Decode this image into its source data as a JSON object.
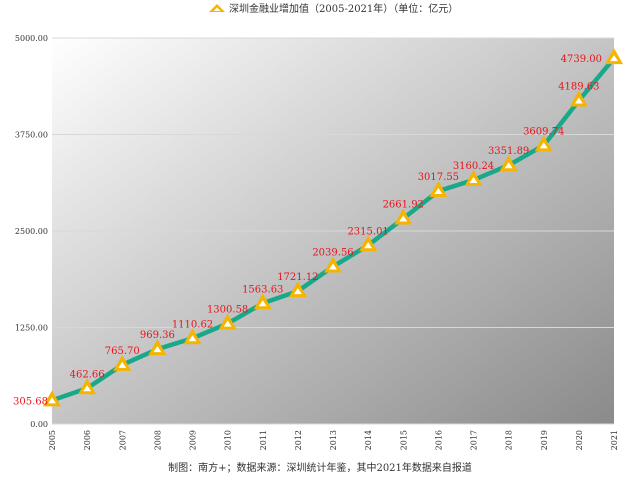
{
  "chart_data": {
    "type": "line",
    "title": "深圳金融业增加值（2005-2021年）（单位：亿元）",
    "xlabel": "",
    "ylabel": "",
    "categories": [
      "2005",
      "2006",
      "2007",
      "2008",
      "2009",
      "2010",
      "2011",
      "2012",
      "2013",
      "2014",
      "2015",
      "2016",
      "2017",
      "2018",
      "2019",
      "2020",
      "2021"
    ],
    "series": [
      {
        "name": "深圳金融业增加值（2005-2021年）（单位：亿元）",
        "values": [
          305.68,
          462.66,
          765.7,
          969.36,
          1110.62,
          1300.58,
          1563.63,
          1721.12,
          2039.56,
          2315.01,
          2661.92,
          3017.55,
          3160.24,
          3351.89,
          3609.74,
          4189.63,
          4739.0
        ],
        "labels": [
          "305.68",
          "462.66",
          "765.70",
          "969.36",
          "1110.62",
          "1300.58",
          "1563.63",
          "1721.12",
          "2039.56",
          "2315.01",
          "2661.92",
          "3017.55",
          "3160.24",
          "3351.89",
          "3609.74",
          "4189.63",
          "4739.00"
        ]
      }
    ],
    "ylim": [
      0,
      5000
    ],
    "yticks": [
      0,
      1250,
      2500,
      3750,
      5000
    ],
    "ytick_labels": [
      "0.00",
      "1250.00",
      "2500.00",
      "3750.00",
      "5000.00"
    ],
    "grid": true,
    "legend": "top-center",
    "source_note": "制图：南方+；数据来源：深圳统计年鉴，其中2021年数据来自报道",
    "colors": {
      "line": "#1aa88a",
      "marker": "#f5b400",
      "marker_inner": "#ffffff",
      "value_label": "#e8141c",
      "plot_bg_light": "#ffffff",
      "plot_bg_dark": "#8a8a8a",
      "grid": "#d8d8d8"
    }
  }
}
